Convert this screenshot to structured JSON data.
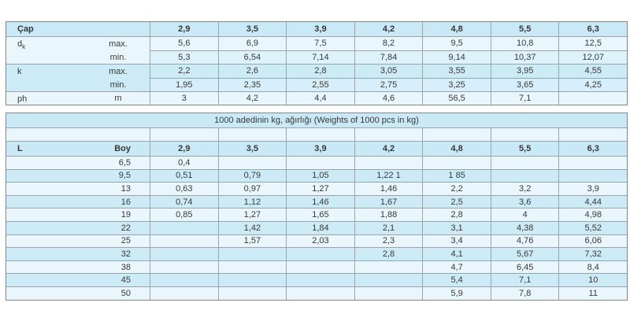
{
  "colors": {
    "row_light": "#e9f7fd",
    "row_mid": "#ddf2fb",
    "row_medium": "#cdebf7",
    "row_mid2": "#d7effa",
    "header_bg": "#c9e9f7",
    "border_inner": "#9aa4ab",
    "border_outer": "#7f878c",
    "text": "#383838"
  },
  "table1": {
    "header": {
      "label": "Çap",
      "sizes": [
        "2,9",
        "3,5",
        "3,9",
        "4,2",
        "4,8",
        "5,5",
        "6,3"
      ]
    },
    "groups": [
      {
        "label": "d",
        "label_sub": "k",
        "shade": "light",
        "rows": [
          {
            "qual": "max.",
            "shade": "light",
            "values": [
              "5,6",
              "6,9",
              "7,5",
              "8,2",
              "9,5",
              "10,8",
              "12,5"
            ]
          },
          {
            "qual": "min.",
            "shade": "mid",
            "values": [
              "5,3",
              "6,54",
              "7,14",
              "7,84",
              "9,14",
              "10,37",
              "12,07"
            ]
          }
        ]
      },
      {
        "label": "k",
        "label_sub": "",
        "shade": "medium",
        "rows": [
          {
            "qual": "max.",
            "shade": "medium",
            "values": [
              "2,2",
              "2,6",
              "2,8",
              "3,05",
              "3,55",
              "3,95",
              "4,55"
            ]
          },
          {
            "qual": "min.",
            "shade": "mid2",
            "values": [
              "1,95",
              "2,35",
              "2,55",
              "2,75",
              "3,25",
              "3,65",
              "4,25"
            ]
          }
        ]
      },
      {
        "label": "ph",
        "label_sub": "",
        "shade": "light",
        "rows": [
          {
            "qual": "m",
            "shade": "light",
            "values": [
              "3",
              "4,2",
              "4,4",
              "4,6",
              "56,5",
              "7,1",
              ""
            ]
          }
        ]
      }
    ]
  },
  "table2": {
    "title": "1000 adedinin kg, ağırlığı (Weights of 1000 pcs in kg)",
    "length_header": "L",
    "boy_header": "Boy",
    "sizes": [
      "2,9",
      "3,5",
      "3,9",
      "4,2",
      "4,8",
      "5,5",
      "6,3"
    ],
    "rows": [
      {
        "boy": "6,5",
        "values": [
          "0,4",
          "",
          "",
          "",
          "",
          "",
          ""
        ]
      },
      {
        "boy": "9,5",
        "values": [
          "0,51",
          "0,79",
          "1,05",
          "1,22 1",
          "1 85",
          "",
          ""
        ]
      },
      {
        "boy": "13",
        "values": [
          "0,63",
          "0,97",
          "1,27",
          "1,46",
          "2,2",
          "3,2",
          "3,9"
        ]
      },
      {
        "boy": "16",
        "values": [
          "0,74",
          "1,12",
          "1,46",
          "1,67",
          "2,5",
          "3,6",
          "4,44"
        ]
      },
      {
        "boy": "19",
        "values": [
          "0,85",
          "1,27",
          "1,65",
          "1,88",
          "2,8",
          "4",
          "4,98"
        ]
      },
      {
        "boy": "22",
        "values": [
          "",
          "1,42",
          "1,84",
          "2,1",
          "3,1",
          "4,38",
          "5,52"
        ]
      },
      {
        "boy": "25",
        "values": [
          "",
          "1,57",
          "2,03",
          "2,3",
          "3,4",
          "4,76",
          "6,06"
        ]
      },
      {
        "boy": "32",
        "values": [
          "",
          "",
          "",
          "2,8",
          "4,1",
          "5,67",
          "7,32"
        ]
      },
      {
        "boy": "38",
        "values": [
          "",
          "",
          "",
          "",
          "4,7",
          "6,45",
          "8,4"
        ]
      },
      {
        "boy": "45",
        "values": [
          "",
          "",
          "",
          "",
          "5,4",
          "7,1",
          "10"
        ]
      },
      {
        "boy": "50",
        "values": [
          "",
          "",
          "",
          "",
          "5,9",
          "7,8",
          "11"
        ]
      }
    ]
  }
}
